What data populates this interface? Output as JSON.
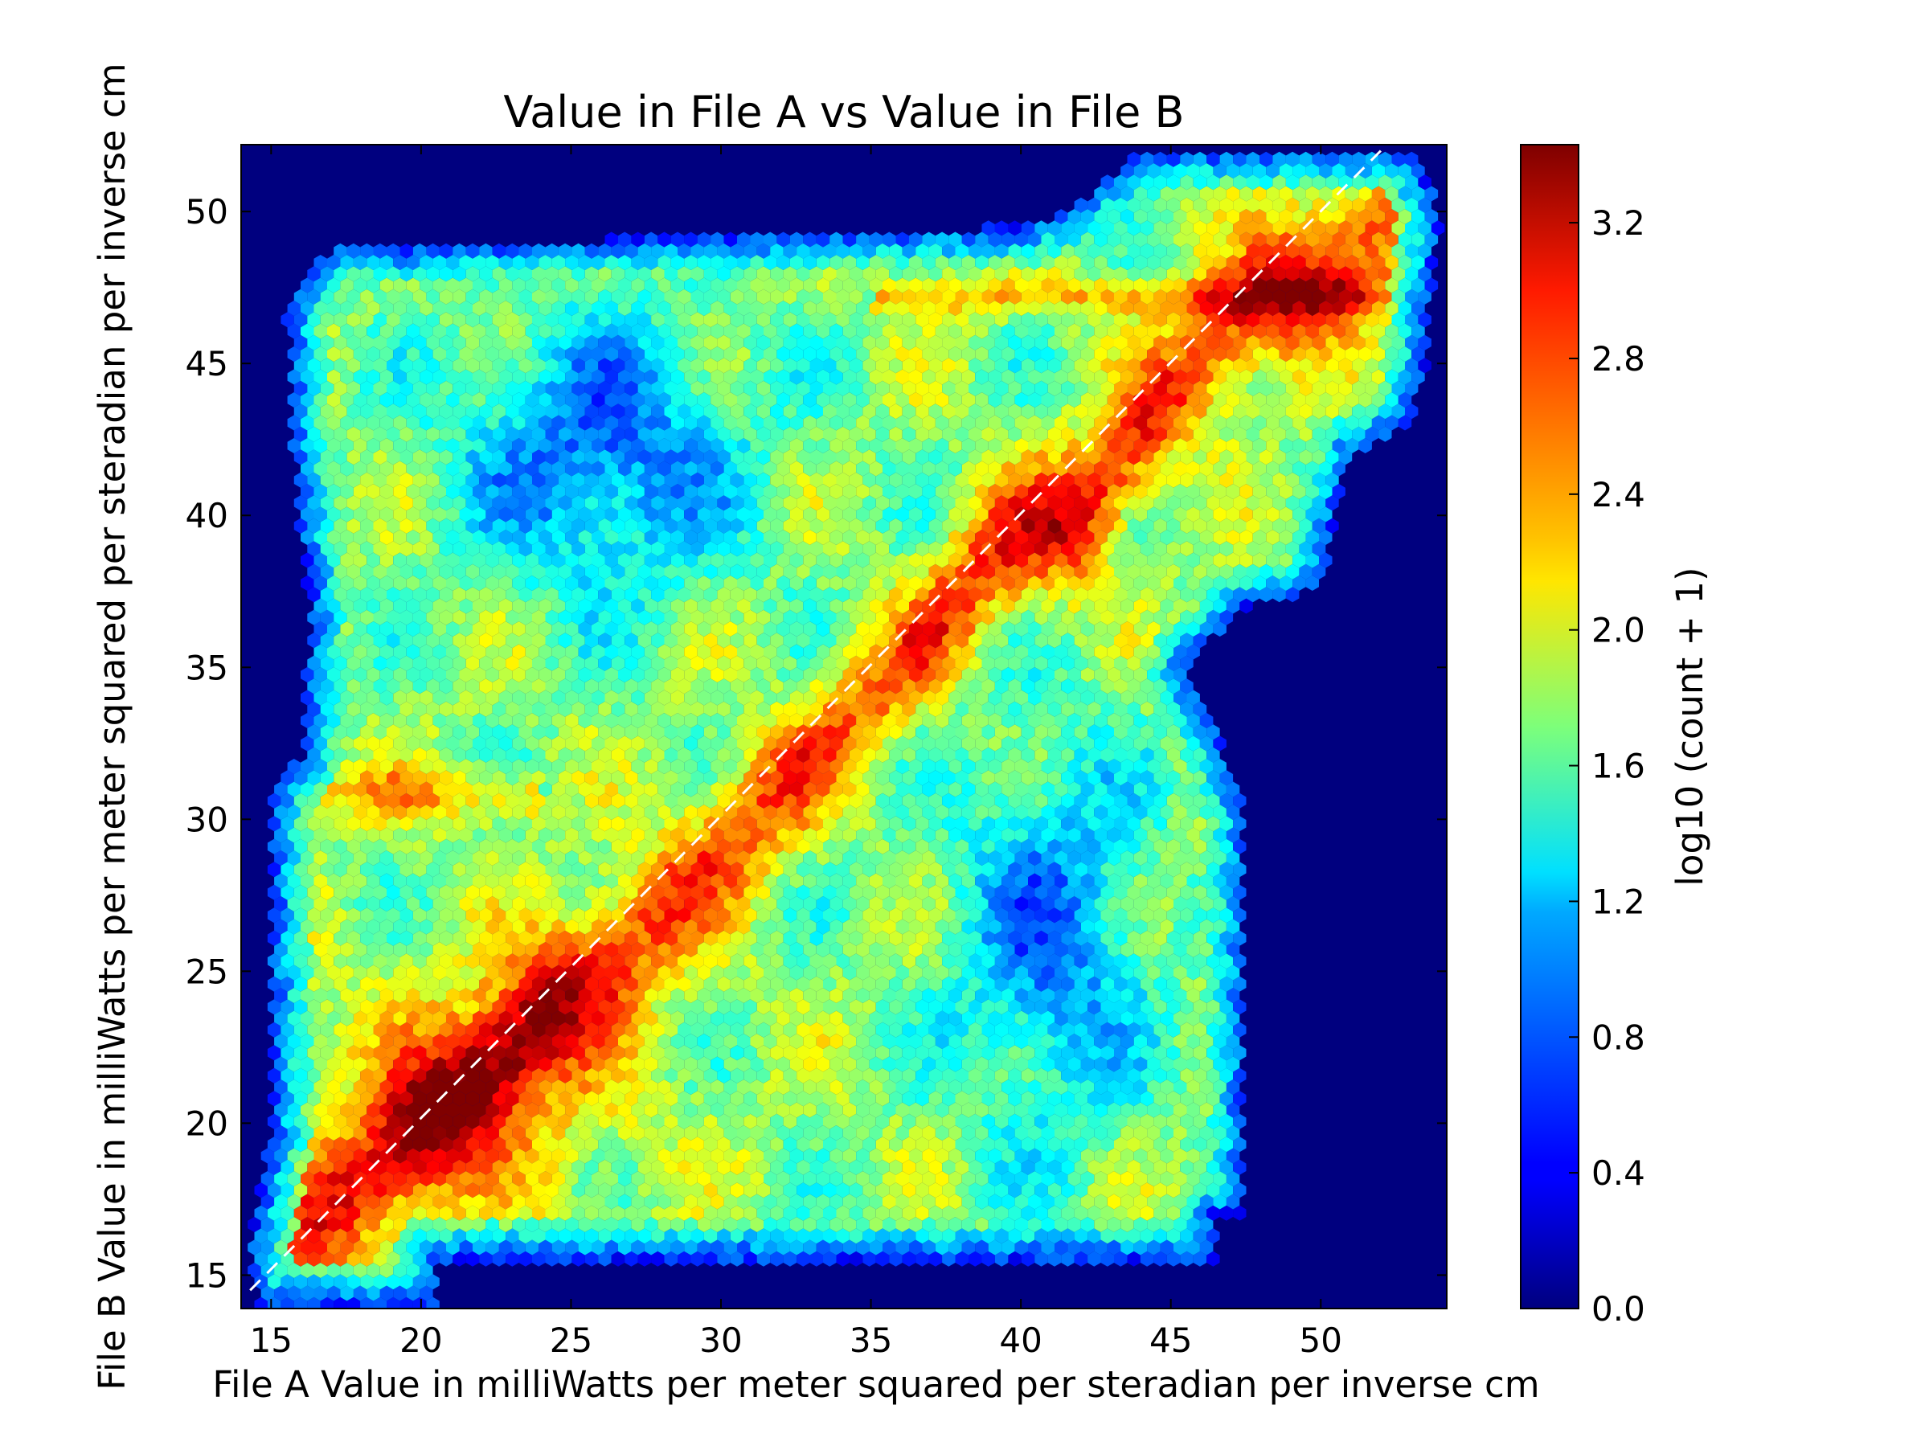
{
  "chart_data": {
    "type": "heatmap",
    "subtype": "hexbin",
    "title": "Value in File A vs Value in File B",
    "xlabel": "File A Value in milliWatts per meter squared per steradian per inverse cm",
    "ylabel": "File B Value in milliWatts per meter squared per steradian per inverse cm",
    "xlim": [
      14,
      54.2
    ],
    "ylim": [
      13.9,
      52.2
    ],
    "xticks": [
      15,
      20,
      25,
      30,
      35,
      40,
      45,
      50
    ],
    "yticks": [
      15,
      20,
      25,
      30,
      35,
      40,
      45,
      50
    ],
    "colormap": "jet",
    "background_color": "#00007f",
    "reference_line": {
      "style": "dashed",
      "color": "#ffffff",
      "from": [
        14.3,
        14.5
      ],
      "to": [
        52,
        52
      ]
    },
    "colorbar": {
      "label": "log10 (count + 1)",
      "range": [
        0,
        3.43
      ],
      "ticks": [
        "0.0",
        "0.4",
        "0.8",
        "1.2",
        "1.6",
        "2.0",
        "2.4",
        "2.8",
        "3.2"
      ],
      "tick_values": [
        0.0,
        0.4,
        0.8,
        1.2,
        1.6,
        2.0,
        2.4,
        2.8,
        3.2
      ]
    },
    "diagonal_band": [
      [
        15,
        15,
        2.6
      ],
      [
        16.5,
        16.5,
        3.0
      ],
      [
        18,
        18,
        3.1
      ],
      [
        19.5,
        19.3,
        3.3
      ],
      [
        21,
        20.5,
        3.4
      ],
      [
        22.5,
        22,
        3.35
      ],
      [
        24,
        23.5,
        3.3
      ],
      [
        25.5,
        24.8,
        3.1
      ],
      [
        27,
        26,
        3.0
      ],
      [
        28.5,
        27.5,
        2.9
      ],
      [
        30,
        29,
        2.85
      ],
      [
        31.5,
        30.5,
        2.9
      ],
      [
        33,
        32,
        2.8
      ],
      [
        34.5,
        33.5,
        2.75
      ],
      [
        36,
        35,
        2.8
      ],
      [
        37.5,
        37,
        2.9
      ],
      [
        39,
        38.5,
        3.0
      ],
      [
        40.5,
        39.5,
        3.1
      ],
      [
        42,
        40,
        3.3
      ],
      [
        43.5,
        42,
        3.1
      ],
      [
        45,
        44,
        3.0
      ],
      [
        46.5,
        45.5,
        3.0
      ],
      [
        48,
        47,
        3.2
      ],
      [
        49.5,
        47.8,
        3.3
      ],
      [
        51,
        48.5,
        3.1
      ],
      [
        52.5,
        50,
        2.9
      ],
      [
        53.5,
        51.5,
        2.8
      ]
    ],
    "support_region": [
      [
        14.5,
        14.0
      ],
      [
        20.5,
        14.0
      ],
      [
        20.5,
        15.5
      ],
      [
        46.5,
        15.5
      ],
      [
        46.5,
        17
      ],
      [
        47.5,
        17
      ],
      [
        47.5,
        30
      ],
      [
        46.5,
        33
      ],
      [
        45.5,
        35
      ],
      [
        47.5,
        37
      ],
      [
        50,
        37.5
      ],
      [
        51,
        42
      ],
      [
        53,
        43
      ],
      [
        53.5,
        45
      ],
      [
        54,
        50
      ],
      [
        53,
        52
      ],
      [
        44,
        52
      ],
      [
        41.5,
        50
      ],
      [
        40,
        49.5
      ],
      [
        17,
        48.8
      ],
      [
        15.5,
        47
      ],
      [
        15.8,
        41
      ],
      [
        16.3,
        37
      ],
      [
        16,
        32
      ],
      [
        15,
        31
      ],
      [
        15,
        20
      ],
      [
        14.3,
        16
      ]
    ]
  }
}
